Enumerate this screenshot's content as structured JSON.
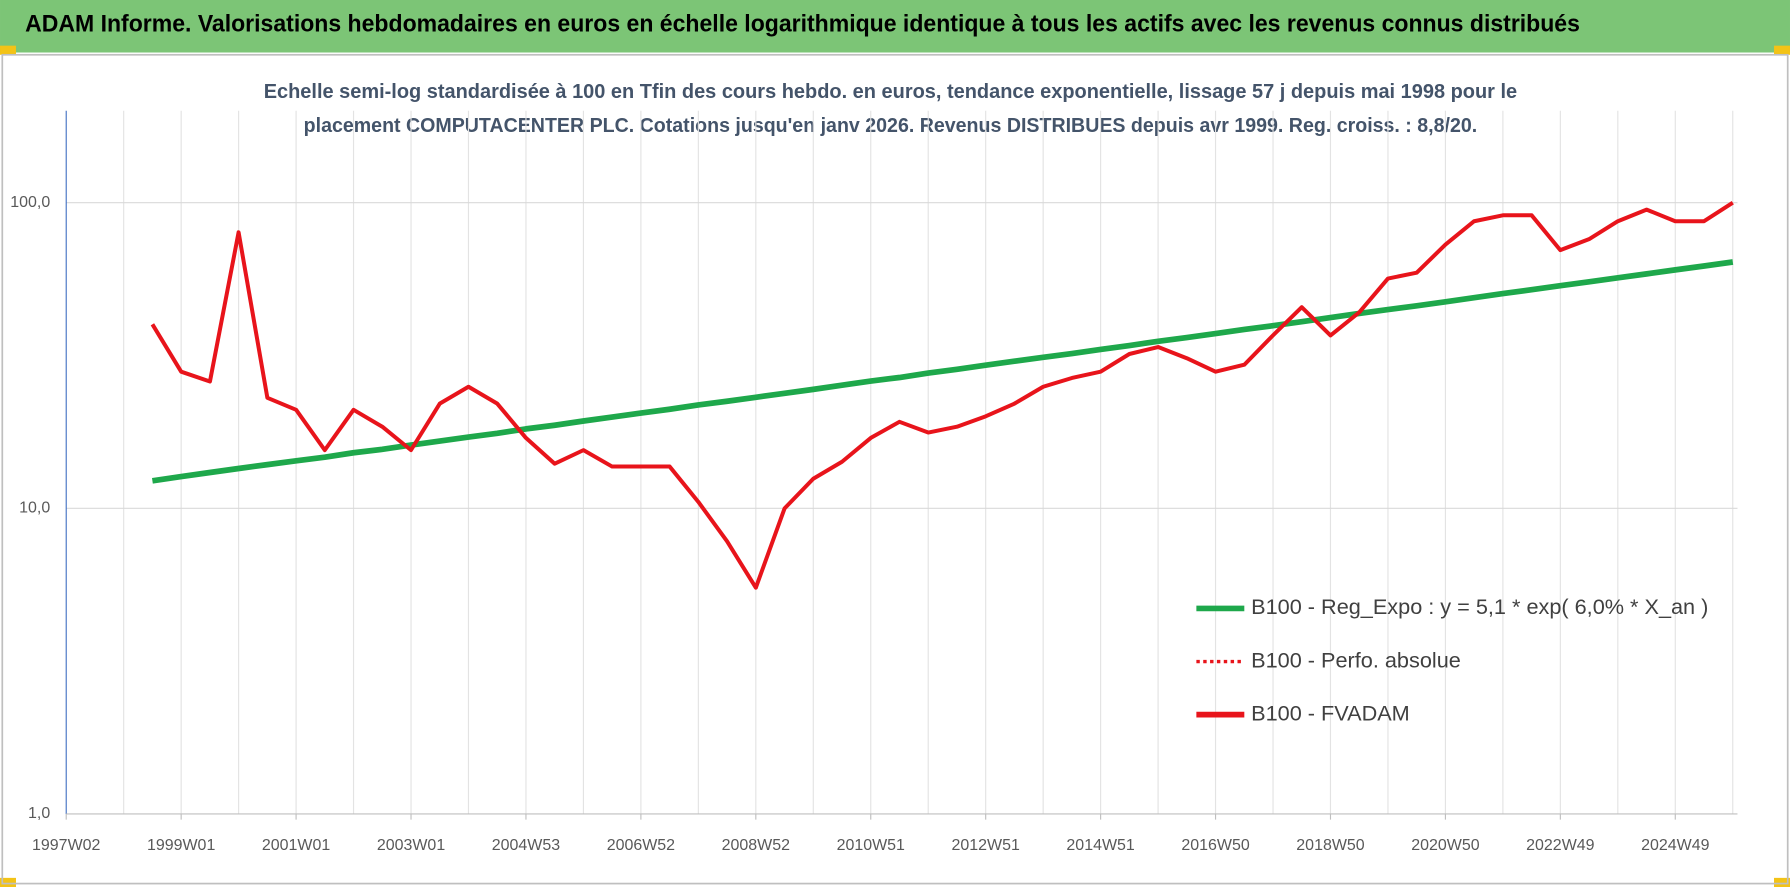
{
  "header": "ADAM Informe. Valorisations hebdomadaires en euros en échelle logarithmique identique à tous les actifs avec les revenus connus distribués",
  "chart_data": {
    "type": "line",
    "title": [
      "Echelle semi-log standardisée à 100 en Tfin des cours hebdo. en euros, tendance exponentielle, lissage 57 j depuis mai 1998 pour le",
      "placement COMPUTACENTER PLC. Cotations jusqu'en janv 2026. Revenus DISTRIBUES depuis avr 1999. Reg. croiss. : 8,8/20."
    ],
    "categories": [
      "1997W02",
      null,
      null,
      null,
      "1999W01",
      null,
      null,
      null,
      "2001W01",
      null,
      null,
      null,
      "2003W01",
      null,
      null,
      null,
      "2004W53",
      null,
      null,
      null,
      "2006W52",
      null,
      null,
      null,
      "2008W52",
      null,
      null,
      null,
      "2010W51",
      null,
      null,
      null,
      "2012W51",
      null,
      null,
      null,
      "2014W51",
      null,
      null,
      null,
      "2016W50",
      null,
      null,
      null,
      "2018W50",
      null,
      null,
      null,
      "2020W50",
      null,
      null,
      null,
      "2022W49",
      null,
      null,
      null,
      "2024W49",
      null,
      null
    ],
    "series": [
      {
        "name": "B100 - Reg_Expo : y = 5,1 * exp( 6,0% *  X_an )",
        "color": "#1ea84b",
        "style": "solid",
        "values": [
          null,
          null,
          null,
          12.3,
          12.7,
          13.1,
          13.5,
          13.9,
          14.3,
          14.7,
          15.2,
          15.6,
          16.1,
          16.6,
          17.1,
          17.6,
          18.2,
          18.7,
          19.3,
          19.9,
          20.5,
          21.1,
          21.8,
          22.4,
          23.1,
          23.8,
          24.5,
          25.3,
          26.1,
          26.8,
          27.7,
          28.5,
          29.4,
          30.3,
          31.2,
          32.1,
          33.1,
          34.1,
          35.2,
          36.2,
          37.3,
          38.5,
          39.6,
          40.8,
          42.1,
          43.4,
          44.7,
          46.0,
          47.4,
          48.9,
          50.4,
          51.9,
          53.5,
          55.1,
          56.8,
          58.5,
          60.3,
          62.1,
          64.0
        ]
      },
      {
        "name": "B100 - Perfo. absolue",
        "color": "#e8141b",
        "style": "dotted",
        "values": [
          null,
          null,
          null,
          null,
          null,
          null,
          null,
          null,
          null,
          null,
          null,
          null,
          null,
          null,
          null,
          null,
          null,
          null,
          null,
          null,
          null,
          null,
          null,
          null,
          null,
          null,
          null,
          null,
          null,
          null,
          null,
          null,
          null,
          null,
          null,
          null,
          null,
          null,
          null,
          null,
          null,
          null,
          null,
          null,
          null,
          null,
          null,
          null,
          null,
          null,
          null,
          null,
          null,
          null,
          null,
          null,
          null,
          null,
          null
        ]
      },
      {
        "name": "B100 - FVADAM",
        "color": "#e8141b",
        "style": "solid",
        "values": [
          null,
          null,
          null,
          40,
          28,
          26,
          80,
          23,
          21,
          15.5,
          21,
          18.5,
          15.5,
          22,
          25,
          22,
          17,
          14,
          15.5,
          13.7,
          13.7,
          13.7,
          10.5,
          7.8,
          5.5,
          10,
          12.5,
          14.2,
          17,
          19.2,
          17.7,
          18.5,
          20,
          22,
          25,
          26.7,
          28,
          32,
          33.7,
          31,
          28,
          29.5,
          36.8,
          45.5,
          36.8,
          43.8,
          56.5,
          59,
          73,
          87,
          91,
          91,
          70,
          76,
          87,
          95,
          87,
          87,
          100
        ]
      }
    ],
    "log_y": true,
    "ylim": [
      1,
      200
    ],
    "yticks": [
      {
        "value": 1,
        "label": "1,0"
      },
      {
        "value": 10,
        "label": "10,0"
      },
      {
        "value": 100,
        "label": "100,0"
      }
    ],
    "grid": true,
    "legend": "lower right"
  }
}
